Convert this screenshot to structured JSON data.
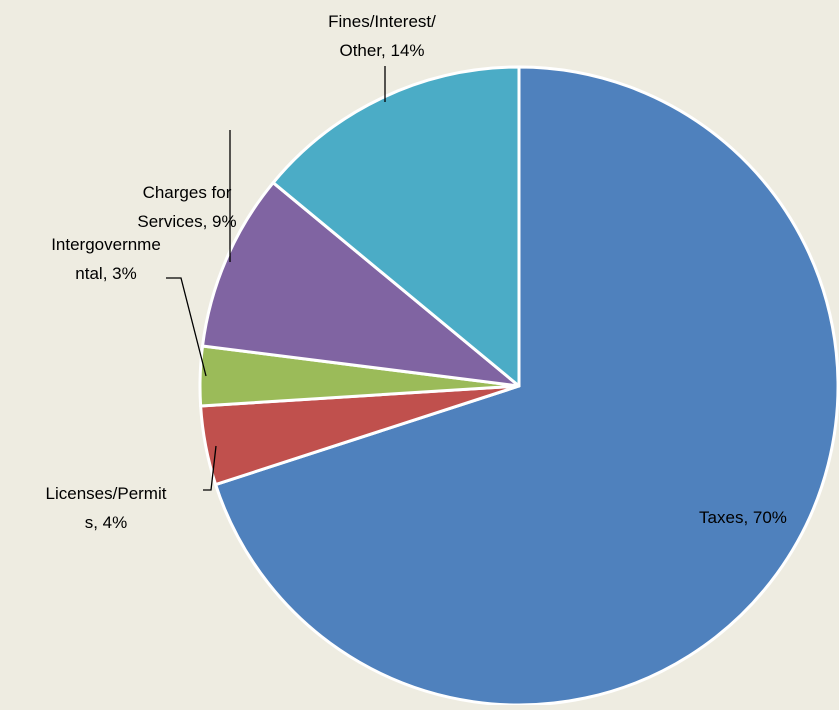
{
  "chart_data": {
    "type": "pie",
    "values": [
      70,
      4,
      3,
      9,
      14
    ],
    "value_labels": [
      [
        "Taxes, 70%"
      ],
      [
        "Licenses/Permit",
        "s, 4%"
      ],
      [
        "Intergovernme",
        "ntal, 3%"
      ],
      [
        "Charges for",
        "Services, 9%"
      ],
      [
        "Fines/Interest/",
        "Other, 14%"
      ]
    ],
    "colors": [
      "#4f81bd",
      "#c0504d",
      "#9bbb59",
      "#8064a2",
      "#4bacc6"
    ]
  }
}
